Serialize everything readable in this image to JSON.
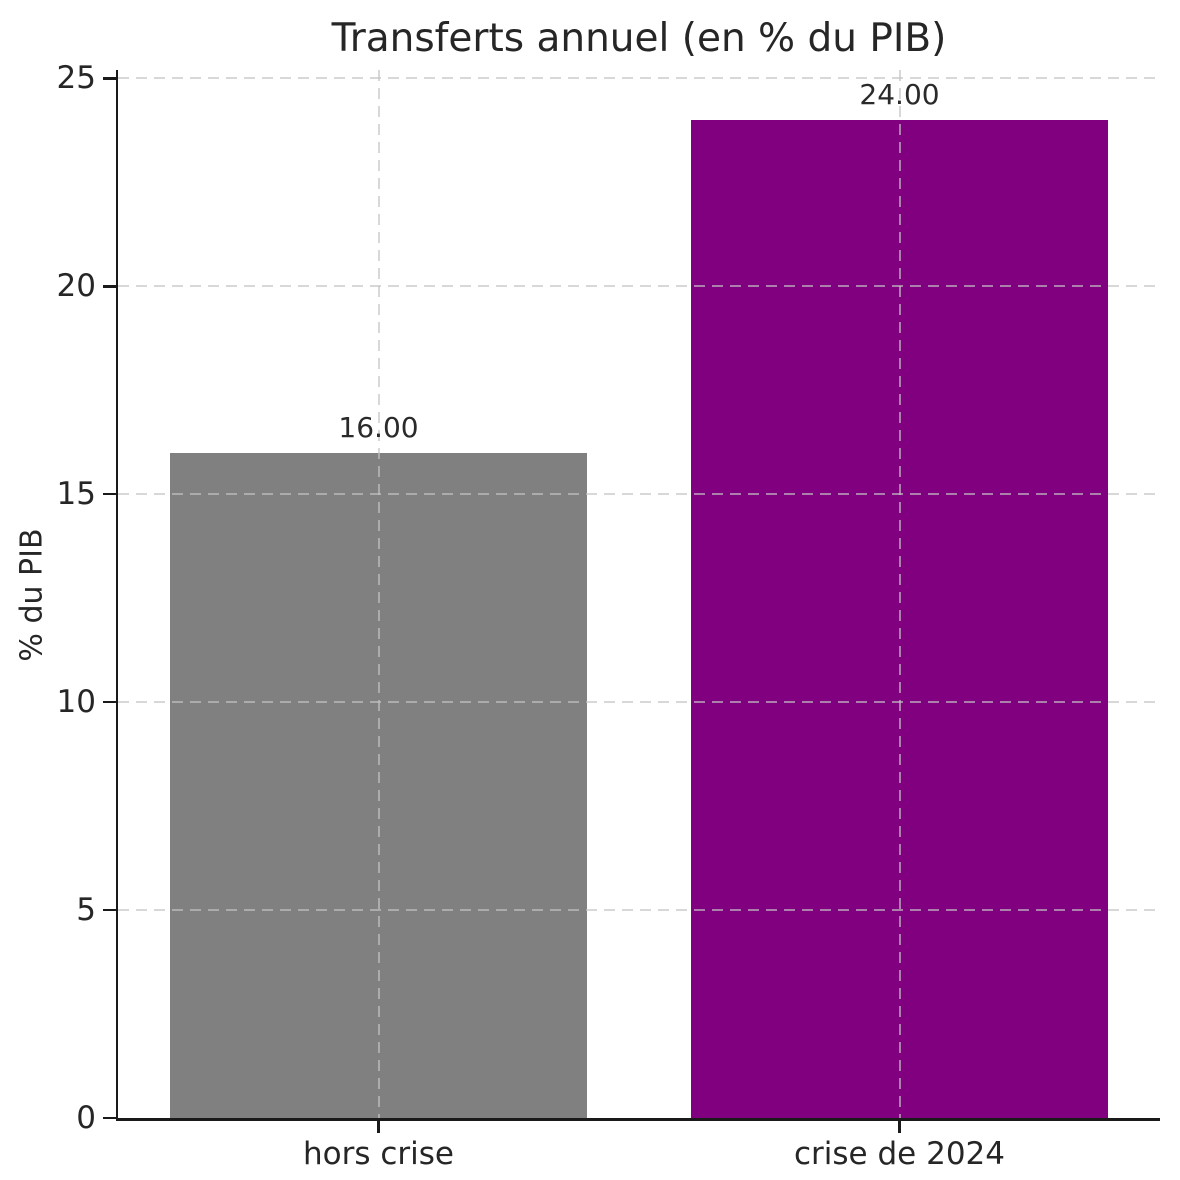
{
  "chart_data": {
    "type": "bar",
    "title": "Transferts annuel (en % du PIB)",
    "xlabel": "",
    "ylabel": "% du PIB",
    "categories": [
      "hors crise",
      "crise de 2024"
    ],
    "values": [
      16,
      24
    ],
    "value_labels": [
      "16.00",
      "24.00"
    ],
    "bar_colors": [
      "#808080",
      "#800080"
    ],
    "yticks": [
      0,
      5,
      10,
      15,
      20,
      25
    ],
    "ylim": [
      0,
      25.2
    ],
    "grid": true,
    "grid_style": "dashed",
    "grid_color": "#c3c3c3",
    "background_color": "#ffffff",
    "text_color": "#262626",
    "legend": null
  }
}
